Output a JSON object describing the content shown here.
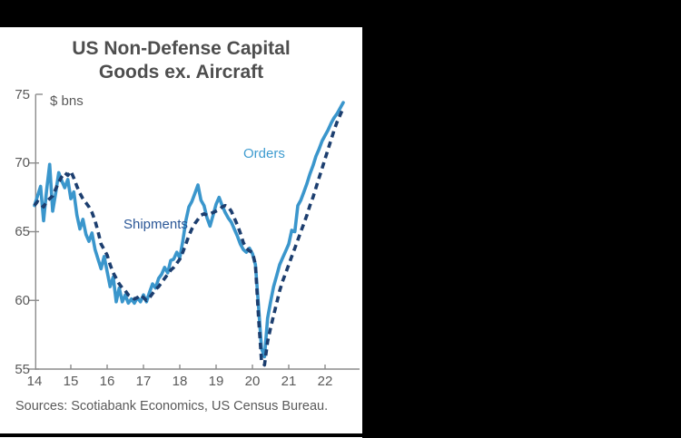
{
  "page": {
    "title_line1": "US Non-Defense Capital",
    "title_line2": "Goods ex. Aircraft",
    "source_text": "Sources: Scotiabank Economics, US Census Bureau."
  },
  "colors": {
    "orders_line": "#3A96CC",
    "shipments_line": "#1C3E6F",
    "axis": "#8C8C8C",
    "text_gray": "#595959",
    "title_gray": "#4E4E4E",
    "frame": "#000000"
  },
  "chart_data": {
    "type": "line",
    "title": "US Non-Defense Capital Goods ex. Aircraft",
    "ylabel": "$ bns",
    "xlabel": "",
    "xlim": [
      14,
      22.95
    ],
    "ylim": [
      55,
      75
    ],
    "x_ticks": [
      14,
      15,
      16,
      17,
      18,
      19,
      20,
      21,
      22
    ],
    "y_ticks": [
      55,
      60,
      65,
      70,
      75
    ],
    "grid": false,
    "legend_position": "inline-annotations",
    "series": [
      {
        "name": "Orders",
        "style": "solid",
        "color": "#3A96CC",
        "x_start": 14.0,
        "x_step": 0.0833333,
        "values": [
          66.9,
          67.6,
          68.3,
          65.8,
          68.0,
          69.9,
          66.5,
          67.8,
          69.3,
          68.7,
          68.2,
          68.8,
          67.4,
          67.9,
          66.2,
          65.2,
          65.9,
          64.8,
          64.3,
          64.9,
          63.7,
          63.0,
          62.3,
          63.2,
          62.1,
          61.0,
          61.7,
          59.9,
          60.9,
          59.9,
          60.4,
          59.8,
          60.1,
          59.8,
          60.2,
          59.9,
          60.4,
          59.9,
          60.6,
          61.2,
          60.9,
          61.6,
          61.9,
          62.4,
          62.0,
          62.9,
          63.0,
          63.5,
          63.1,
          64.3,
          65.8,
          66.8,
          67.2,
          67.8,
          68.4,
          67.3,
          66.9,
          66.0,
          65.4,
          66.2,
          67.0,
          67.5,
          66.9,
          66.4,
          66.0,
          65.7,
          65.2,
          64.7,
          64.1,
          63.7,
          63.5,
          63.8,
          63.4,
          62.6,
          59.6,
          56.5,
          55.9,
          58.7,
          59.9,
          61.0,
          61.8,
          62.6,
          63.1,
          63.6,
          64.1,
          65.1,
          65.0,
          66.9,
          67.3,
          67.9,
          68.5,
          69.2,
          69.8,
          70.5,
          71.0,
          71.6,
          72.0,
          72.4,
          72.9,
          73.3,
          73.6,
          74.0,
          74.4
        ]
      },
      {
        "name": "Shipments",
        "style": "dashed",
        "color": "#1C3E6F",
        "x_start": 14.0,
        "x_step": 0.0833333,
        "values": [
          66.9,
          67.2,
          67.0,
          66.8,
          67.2,
          67.4,
          67.6,
          68.1,
          68.6,
          69.0,
          69.3,
          69.1,
          69.4,
          68.9,
          68.3,
          67.8,
          67.4,
          67.1,
          66.8,
          66.4,
          65.8,
          65.0,
          64.1,
          63.7,
          63.3,
          62.6,
          62.0,
          61.6,
          61.2,
          60.9,
          60.7,
          60.4,
          60.3,
          60.1,
          60.2,
          60.4,
          60.2,
          60.0,
          60.2,
          60.5,
          60.8,
          61.0,
          61.3,
          61.6,
          61.9,
          62.2,
          62.4,
          62.7,
          63.0,
          63.5,
          64.1,
          64.7,
          65.2,
          65.6,
          65.9,
          66.2,
          66.3,
          66.2,
          66.3,
          66.4,
          66.5,
          66.6,
          66.8,
          66.9,
          66.8,
          66.5,
          66.0,
          65.5,
          64.9,
          64.2,
          63.8,
          63.6,
          63.5,
          62.6,
          58.8,
          55.6,
          55.3,
          57.0,
          58.0,
          58.9,
          59.8,
          60.7,
          61.4,
          62.0,
          62.6,
          63.2,
          63.8,
          64.4,
          65.0,
          65.6,
          66.2,
          66.9,
          67.5,
          68.2,
          68.9,
          69.6,
          70.3,
          71.0,
          71.7,
          72.4,
          73.0,
          73.5,
          74.0
        ]
      }
    ],
    "annotations": [
      {
        "text": "Orders",
        "color": "#3F9CD0"
      },
      {
        "text": "Shipments",
        "color": "#2B5797"
      }
    ]
  }
}
